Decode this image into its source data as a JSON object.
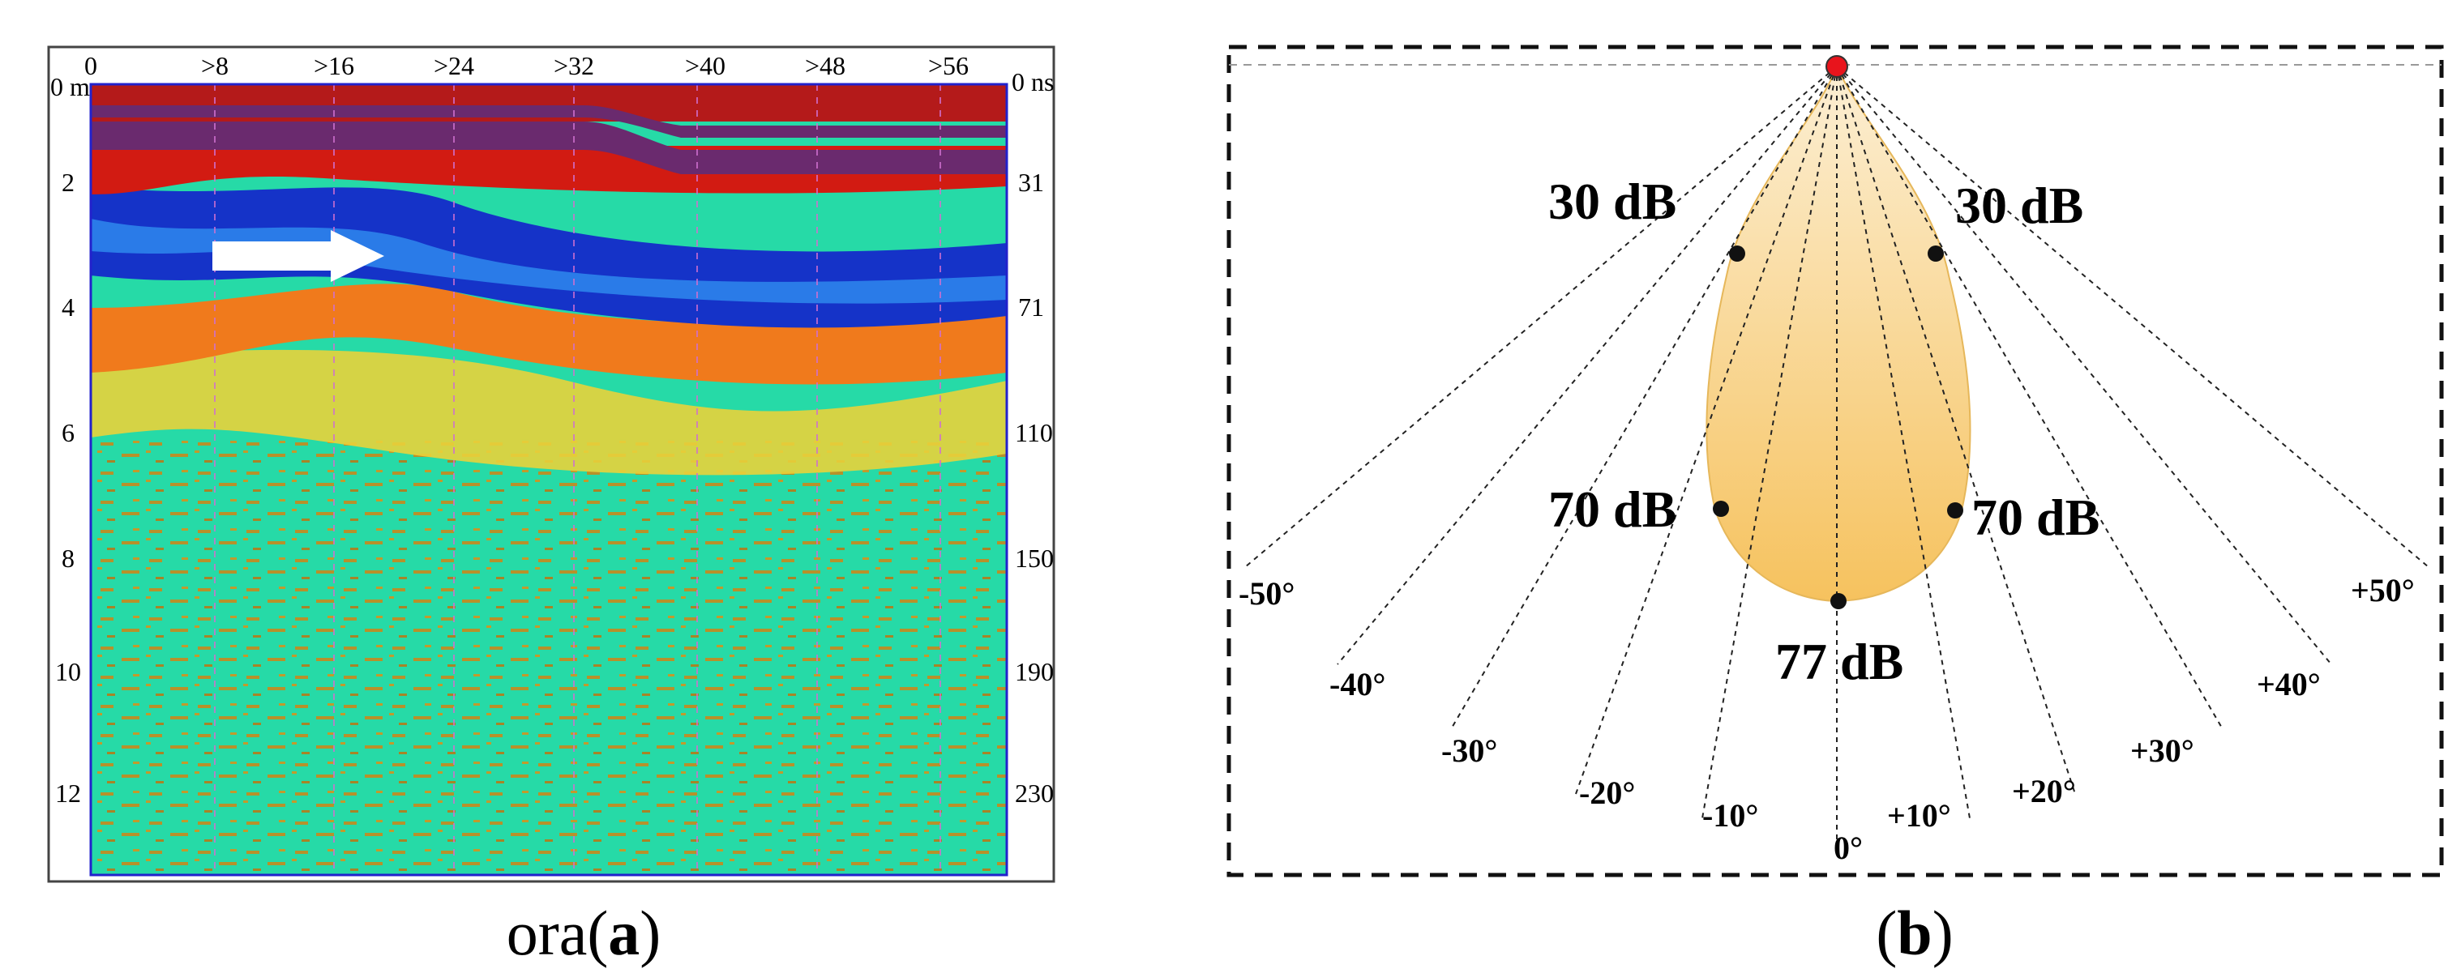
{
  "panel_a": {
    "top_ticks": [
      "0",
      ">8",
      ">16",
      ">24",
      ">32",
      ">40",
      ">48",
      ">56"
    ],
    "left_ticks": [
      "0 m",
      "2",
      "4",
      "6",
      "8",
      "10",
      "12"
    ],
    "right_ticks": [
      "0 ns",
      "31",
      "71",
      "110",
      "150",
      "190",
      "230"
    ],
    "caption_prefix": "ora(",
    "caption_letter": "a",
    "caption_suffix": ")"
  },
  "panel_b": {
    "db_labels": {
      "upper_left": "30 dB",
      "upper_right": "30 dB",
      "mid_left": "70 dB",
      "mid_right": "70 dB",
      "bottom": "77 dB"
    },
    "angle_labels": [
      "-50°",
      "-40°",
      "-30°",
      "-20°",
      "-10°",
      "0°",
      "+10°",
      "+20°",
      "+30°",
      "+40°",
      "+50°"
    ],
    "caption_prefix": "(",
    "caption_letter": "b",
    "caption_suffix": ")"
  },
  "colors": {
    "radargram_background": "#1fd89a",
    "lobe_fill_top": "#fbebc9",
    "lobe_fill_bottom": "#f7c96a",
    "source_point": "#e8141c",
    "frame_blue": "#2222cc"
  }
}
